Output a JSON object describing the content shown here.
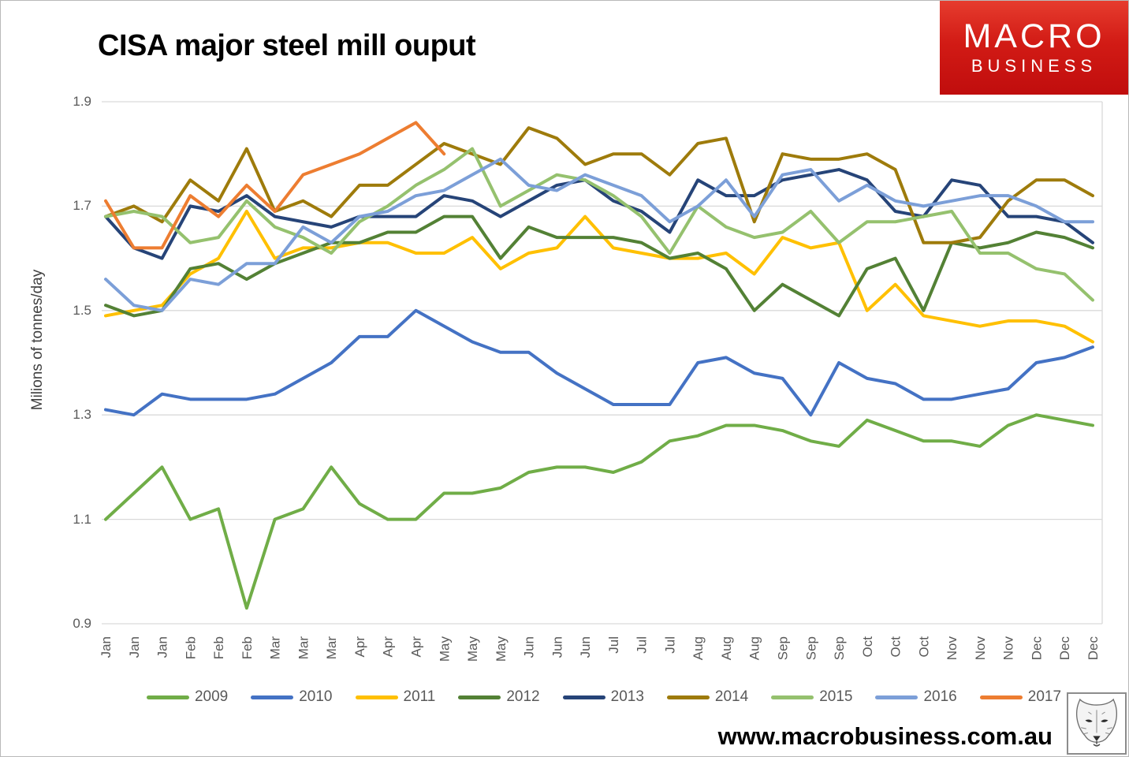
{
  "page": {
    "title": "CISA major steel mill ouput"
  },
  "logo": {
    "line1": "MACRO",
    "line2": "BUSINESS",
    "bg_color": "#C91010",
    "text_color": "#FFFFFF"
  },
  "footer": {
    "website": "www.macrobusiness.com.au",
    "fox_icon": "fox-head-sketch"
  },
  "colors": {
    "grid": "#D9D9D9",
    "axis_text": "#595959",
    "title_text": "#000000"
  },
  "chart_data": {
    "type": "line",
    "title": "CISA major steel mill ouput",
    "xlabel": "",
    "ylabel": "Milions of tonnes/day",
    "ylim": [
      0.9,
      1.9
    ],
    "yticks": [
      1.9,
      1.7,
      1.5,
      1.3,
      1.1,
      0.9
    ],
    "grid": true,
    "legend_position": "bottom",
    "x_labels": [
      "Jan",
      "Jan",
      "Jan",
      "Feb",
      "Feb",
      "Feb",
      "Mar",
      "Mar",
      "Mar",
      "Apr",
      "Apr",
      "Apr",
      "May",
      "May",
      "May",
      "Jun",
      "Jun",
      "Jun",
      "Jul",
      "Jul",
      "Jul",
      "Aug",
      "Aug",
      "Aug",
      "Sep",
      "Sep",
      "Sep",
      "Oct",
      "Oct",
      "Oct",
      "Nov",
      "Nov",
      "Nov",
      "Dec",
      "Dec",
      "Dec"
    ],
    "series": [
      {
        "name": "2009",
        "color": "#70AD47",
        "values": [
          1.1,
          1.15,
          1.2,
          1.1,
          1.12,
          0.93,
          1.1,
          1.12,
          1.2,
          1.13,
          1.1,
          1.1,
          1.15,
          1.15,
          1.16,
          1.19,
          1.2,
          1.2,
          1.19,
          1.21,
          1.25,
          1.26,
          1.28,
          1.28,
          1.27,
          1.25,
          1.24,
          1.29,
          1.27,
          1.25,
          1.25,
          1.24,
          1.28,
          1.3,
          1.29,
          1.28
        ]
      },
      {
        "name": "2010",
        "color": "#4472C4",
        "values": [
          1.31,
          1.3,
          1.34,
          1.33,
          1.33,
          1.33,
          1.34,
          1.37,
          1.4,
          1.45,
          1.45,
          1.5,
          1.47,
          1.44,
          1.42,
          1.42,
          1.38,
          1.35,
          1.32,
          1.32,
          1.32,
          1.4,
          1.41,
          1.38,
          1.37,
          1.3,
          1.4,
          1.37,
          1.36,
          1.33,
          1.33,
          1.34,
          1.35,
          1.4,
          1.41,
          1.43
        ]
      },
      {
        "name": "2011",
        "color": "#FFC000",
        "values": [
          1.49,
          1.5,
          1.51,
          1.57,
          1.6,
          1.69,
          1.6,
          1.62,
          1.62,
          1.63,
          1.63,
          1.61,
          1.61,
          1.64,
          1.58,
          1.61,
          1.62,
          1.68,
          1.62,
          1.61,
          1.6,
          1.6,
          1.61,
          1.57,
          1.64,
          1.62,
          1.63,
          1.5,
          1.55,
          1.49,
          1.48,
          1.47,
          1.48,
          1.48,
          1.47,
          1.44
        ]
      },
      {
        "name": "2012",
        "color": "#538135",
        "values": [
          1.51,
          1.49,
          1.5,
          1.58,
          1.59,
          1.56,
          1.59,
          1.61,
          1.63,
          1.63,
          1.65,
          1.65,
          1.68,
          1.68,
          1.6,
          1.66,
          1.64,
          1.64,
          1.64,
          1.63,
          1.6,
          1.61,
          1.58,
          1.5,
          1.55,
          1.52,
          1.49,
          1.58,
          1.6,
          1.5,
          1.63,
          1.62,
          1.63,
          1.65,
          1.64,
          1.62
        ]
      },
      {
        "name": "2013",
        "color": "#264478",
        "values": [
          1.68,
          1.62,
          1.6,
          1.7,
          1.69,
          1.72,
          1.68,
          1.67,
          1.66,
          1.68,
          1.68,
          1.68,
          1.72,
          1.71,
          1.68,
          1.71,
          1.74,
          1.75,
          1.71,
          1.69,
          1.65,
          1.75,
          1.72,
          1.72,
          1.75,
          1.76,
          1.77,
          1.75,
          1.69,
          1.68,
          1.75,
          1.74,
          1.68,
          1.68,
          1.67,
          1.63
        ]
      },
      {
        "name": "2014",
        "color": "#9E7B0B",
        "values": [
          1.68,
          1.7,
          1.67,
          1.75,
          1.71,
          1.81,
          1.69,
          1.71,
          1.68,
          1.74,
          1.74,
          1.78,
          1.82,
          1.8,
          1.78,
          1.85,
          1.83,
          1.78,
          1.8,
          1.8,
          1.76,
          1.82,
          1.83,
          1.67,
          1.8,
          1.79,
          1.79,
          1.8,
          1.77,
          1.63,
          1.63,
          1.64,
          1.71,
          1.75,
          1.75,
          1.72
        ]
      },
      {
        "name": "2015",
        "color": "#95C16E",
        "values": [
          1.68,
          1.69,
          1.68,
          1.63,
          1.64,
          1.71,
          1.66,
          1.64,
          1.61,
          1.67,
          1.7,
          1.74,
          1.77,
          1.81,
          1.7,
          1.73,
          1.76,
          1.75,
          1.72,
          1.68,
          1.61,
          1.7,
          1.66,
          1.64,
          1.65,
          1.69,
          1.63,
          1.67,
          1.67,
          1.68,
          1.69,
          1.61,
          1.61,
          1.58,
          1.57,
          1.52
        ]
      },
      {
        "name": "2016",
        "color": "#7C9FD8",
        "values": [
          1.56,
          1.51,
          1.5,
          1.56,
          1.55,
          1.59,
          1.59,
          1.66,
          1.63,
          1.68,
          1.69,
          1.72,
          1.73,
          1.76,
          1.79,
          1.74,
          1.73,
          1.76,
          1.74,
          1.72,
          1.67,
          1.7,
          1.75,
          1.68,
          1.76,
          1.77,
          1.71,
          1.74,
          1.71,
          1.7,
          1.71,
          1.72,
          1.72,
          1.7,
          1.67,
          1.67
        ]
      },
      {
        "name": "2017",
        "color": "#ED7D31",
        "values": [
          1.71,
          1.62,
          1.62,
          1.72,
          1.68,
          1.74,
          1.69,
          1.76,
          1.78,
          1.8,
          1.83,
          1.86,
          1.8
        ]
      }
    ]
  }
}
